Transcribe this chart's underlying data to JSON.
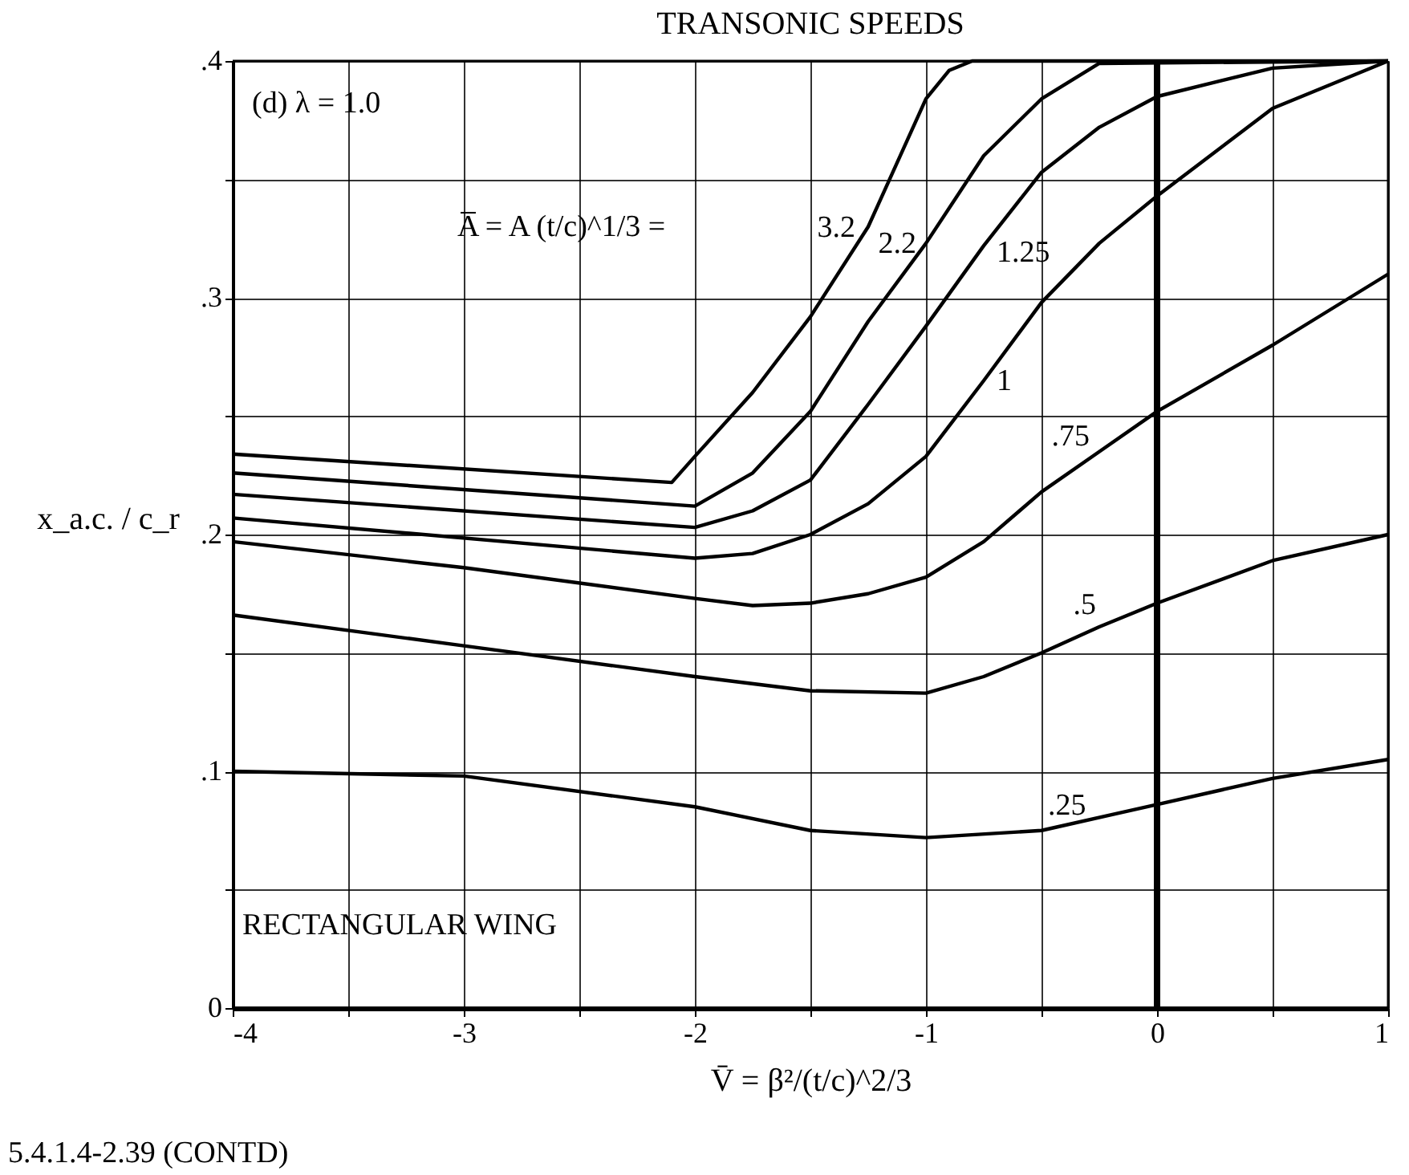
{
  "chart_data": {
    "type": "line",
    "title": "TRANSONIC SPEEDS",
    "xlabel": "V̄ = β²/(t/c)^2/3",
    "ylabel": "x_a.c. / c_r",
    "xlim": [
      -4,
      1
    ],
    "ylim": [
      0,
      0.4
    ],
    "xticks": [
      -4,
      {
        "value": -3.5,
        "label": null
      },
      -3,
      {
        "value": -2.5,
        "label": null
      },
      -2,
      {
        "value": -1.5,
        "label": null
      },
      -1,
      {
        "value": -0.5,
        "label": null
      },
      0,
      {
        "value": 0.5,
        "label": null
      },
      1
    ],
    "yticks": [
      0,
      {
        "value": 0.05,
        "label": null
      },
      {
        "value": 0.1,
        "label": ".1"
      },
      {
        "value": 0.15,
        "label": null
      },
      {
        "value": 0.2,
        "label": ".2"
      },
      {
        "value": 0.25,
        "label": null
      },
      {
        "value": 0.3,
        "label": ".3"
      },
      {
        "value": 0.35,
        "label": null
      },
      {
        "value": 0.4,
        "label": ".4"
      }
    ],
    "grid": true,
    "marker": "none",
    "line_style": "solid",
    "ref_lines": [
      {
        "axis": "x",
        "value": 0,
        "color": "#000000"
      }
    ],
    "series": [
      {
        "name": "3.2",
        "color": "#000000",
        "x": [
          -4,
          -2.1,
          -2,
          -1.75,
          -1.5,
          -1.25,
          -1,
          -0.9,
          -0.8,
          1
        ],
        "values": [
          0.234,
          0.222,
          0.233,
          0.26,
          0.292,
          0.33,
          0.384,
          0.396,
          0.4,
          0.4
        ]
      },
      {
        "name": "2.2",
        "color": "#000000",
        "x": [
          -4,
          -2,
          -1.75,
          -1.5,
          -1.25,
          -1,
          -0.75,
          -0.5,
          -0.25,
          1
        ],
        "values": [
          0.226,
          0.212,
          0.226,
          0.252,
          0.29,
          0.323,
          0.36,
          0.384,
          0.399,
          0.4
        ]
      },
      {
        "name": "1.25",
        "color": "#000000",
        "x": [
          -4,
          -2,
          -1.75,
          -1.5,
          -1.25,
          -1,
          -0.75,
          -0.5,
          -0.25,
          0,
          0.5,
          1
        ],
        "values": [
          0.217,
          0.203,
          0.21,
          0.223,
          0.255,
          0.288,
          0.322,
          0.353,
          0.372,
          0.385,
          0.397,
          0.4
        ]
      },
      {
        "name": "1",
        "color": "#000000",
        "x": [
          -4,
          -2,
          -1.75,
          -1.5,
          -1.25,
          -1,
          -0.75,
          -0.5,
          -0.25,
          0,
          0.5,
          1
        ],
        "values": [
          0.207,
          0.19,
          0.192,
          0.2,
          0.213,
          0.233,
          0.265,
          0.298,
          0.323,
          0.343,
          0.38,
          0.4
        ]
      },
      {
        "name": ".75",
        "color": "#000000",
        "x": [
          -4,
          -3,
          -2,
          -1.75,
          -1.5,
          -1.25,
          -1,
          -0.75,
          -0.5,
          -0.25,
          0,
          0.5,
          1
        ],
        "values": [
          0.197,
          0.186,
          0.173,
          0.17,
          0.171,
          0.175,
          0.182,
          0.197,
          0.218,
          0.235,
          0.252,
          0.28,
          0.31
        ]
      },
      {
        "name": ".5",
        "color": "#000000",
        "x": [
          -4,
          -3,
          -2,
          -1.5,
          -1,
          -0.75,
          -0.5,
          -0.25,
          0,
          0.5,
          1
        ],
        "values": [
          0.166,
          0.153,
          0.14,
          0.134,
          0.133,
          0.14,
          0.15,
          0.161,
          0.171,
          0.189,
          0.2
        ]
      },
      {
        "name": ".25",
        "color": "#000000",
        "x": [
          -4,
          -3,
          -2,
          -1.5,
          -1,
          -0.5,
          0,
          0.5,
          1
        ],
        "values": [
          0.1,
          0.098,
          0.085,
          0.075,
          0.072,
          0.075,
          0.086,
          0.097,
          0.105
        ]
      }
    ],
    "annotations": [
      "(d) λ = 1.0",
      "RECTANGULAR WING",
      "5.4.1.4-2.39 (CONTD)",
      "A̅ = A (t/c)^1/3 ="
    ]
  }
}
